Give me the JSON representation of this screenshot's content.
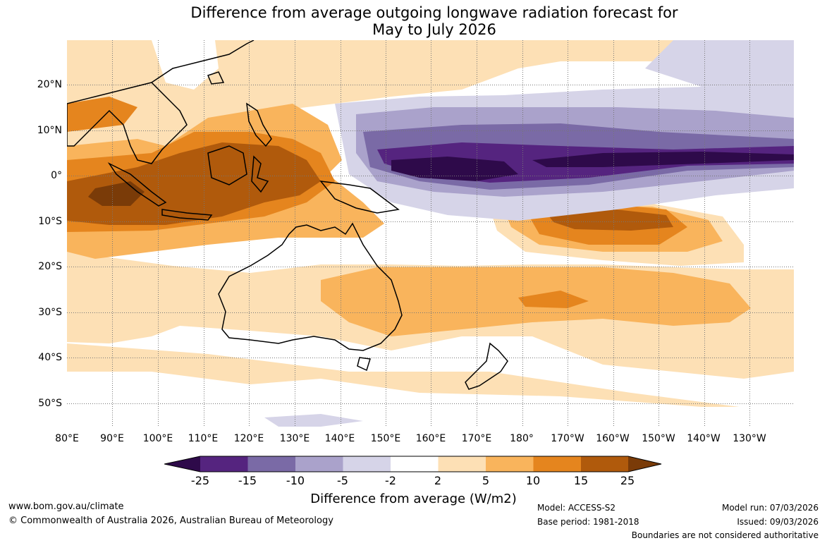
{
  "title_line1": "Difference from average outgoing longwave radiation forecast for",
  "title_line2": "May to July 2026",
  "lat_labels": [
    "20°N",
    "10°N",
    "0°",
    "10°S",
    "20°S",
    "30°S",
    "40°S",
    "50°S"
  ],
  "lon_labels": [
    "80°E",
    "90°E",
    "100°E",
    "110°E",
    "120°E",
    "130°E",
    "140°E",
    "150°E",
    "160°E",
    "170°E",
    "180°",
    "170°W",
    "160°W",
    "150°W",
    "140°W",
    "130°W"
  ],
  "colorbar": {
    "ticks": [
      "-25",
      "-15",
      "-10",
      "-5",
      "-2",
      "2",
      "5",
      "10",
      "15",
      "25"
    ],
    "colors": [
      "#2e0a4a",
      "#55247f",
      "#7a6aa6",
      "#aaa2cb",
      "#d6d4e8",
      "#ffffff",
      "#fde0b5",
      "#f9b45c",
      "#e5851e",
      "#b05a0c",
      "#7a3b08"
    ],
    "label": "Difference from average (W/m2)"
  },
  "footer": {
    "website": "www.bom.gov.au/climate",
    "copyright": "© Commonwealth of Australia 2026, Australian Bureau of Meteorology",
    "model": "Model: ACCESS-S2",
    "base_period": "Base period: 1981-2018",
    "model_run": "Model run: 07/03/2026",
    "issued": "Issued: 09/03/2026",
    "disclaimer": "Boundaries are not considered authoritative"
  }
}
